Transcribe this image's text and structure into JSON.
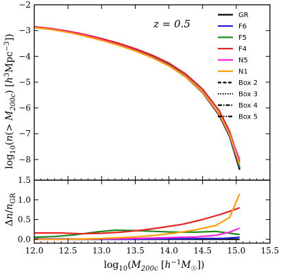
{
  "chart_data": [
    {
      "type": "line",
      "panel": "top",
      "annotation": "z = 0.5",
      "ylabel": "log10(n(>M200c) [h^3 Mpc^-3])",
      "xlim": [
        12.0,
        15.5
      ],
      "ylim": [
        -8.8,
        -2.0
      ],
      "x_ticks": [
        "12.0",
        "12.5",
        "13.0",
        "13.5",
        "14.0",
        "14.5",
        "15.0",
        "15.5"
      ],
      "y_ticks": [
        "−2",
        "−3",
        "−4",
        "−5",
        "−6",
        "−7",
        "−8"
      ],
      "legend_position": "top-right",
      "legend": [
        {
          "label": "GR",
          "color": "#000000",
          "dash": "solid"
        },
        {
          "label": "F6",
          "color": "#1f1fd1",
          "dash": "solid"
        },
        {
          "label": "F5",
          "color": "#1a8a1a",
          "dash": "solid"
        },
        {
          "label": "F4",
          "color": "#e62222",
          "dash": "solid"
        },
        {
          "label": "N5",
          "color": "#ff22dd",
          "dash": "solid"
        },
        {
          "label": "N1",
          "color": "#ffa000",
          "dash": "solid"
        },
        {
          "label": "Box 2",
          "color": "#000000",
          "dash": "dashed"
        },
        {
          "label": "Box 3",
          "color": "#000000",
          "dash": "dotted"
        },
        {
          "label": "Box 4",
          "color": "#000000",
          "dash": "dashdot"
        },
        {
          "label": "Box 5",
          "color": "#000000",
          "dash": "dashdotdot"
        }
      ],
      "series": [
        {
          "name": "GR",
          "color": "#000000",
          "x": [
            12.0,
            12.25,
            12.5,
            12.75,
            13.0,
            13.25,
            13.5,
            13.75,
            14.0,
            14.25,
            14.5,
            14.75,
            14.9,
            15.05
          ],
          "y": [
            -2.88,
            -2.95,
            -3.06,
            -3.2,
            -3.37,
            -3.56,
            -3.78,
            -4.04,
            -4.36,
            -4.8,
            -5.4,
            -6.3,
            -7.1,
            -8.4
          ]
        },
        {
          "name": "F6",
          "color": "#1f1fd1",
          "x": [
            12.0,
            12.25,
            12.5,
            12.75,
            13.0,
            13.25,
            13.5,
            13.75,
            14.0,
            14.25,
            14.5,
            14.75,
            14.9,
            15.05
          ],
          "y": [
            -2.88,
            -2.95,
            -3.06,
            -3.2,
            -3.37,
            -3.56,
            -3.78,
            -4.04,
            -4.36,
            -4.8,
            -5.4,
            -6.3,
            -7.1,
            -8.35
          ]
        },
        {
          "name": "F5",
          "color": "#1a8a1a",
          "x": [
            12.0,
            12.25,
            12.5,
            12.75,
            13.0,
            13.25,
            13.5,
            13.75,
            14.0,
            14.25,
            14.5,
            14.75,
            14.9,
            15.05
          ],
          "y": [
            -2.86,
            -2.93,
            -3.03,
            -3.17,
            -3.33,
            -3.52,
            -3.74,
            -4.0,
            -4.32,
            -4.76,
            -5.36,
            -6.25,
            -7.05,
            -8.3
          ]
        },
        {
          "name": "F4",
          "color": "#e62222",
          "x": [
            12.0,
            12.25,
            12.5,
            12.75,
            13.0,
            13.25,
            13.5,
            13.75,
            14.0,
            14.25,
            14.5,
            14.75,
            14.9,
            15.05
          ],
          "y": [
            -2.85,
            -2.92,
            -3.02,
            -3.15,
            -3.31,
            -3.49,
            -3.7,
            -3.95,
            -4.26,
            -4.68,
            -5.27,
            -6.12,
            -6.9,
            -8.1
          ]
        },
        {
          "name": "N5",
          "color": "#ff22dd",
          "x": [
            12.0,
            12.25,
            12.5,
            12.75,
            13.0,
            13.25,
            13.5,
            13.75,
            14.0,
            14.25,
            14.5,
            14.75,
            14.9,
            15.05
          ],
          "y": [
            -2.87,
            -2.94,
            -3.05,
            -3.19,
            -3.36,
            -3.55,
            -3.77,
            -4.03,
            -4.35,
            -4.78,
            -5.37,
            -6.25,
            -7.0,
            -8.0
          ]
        },
        {
          "name": "N1",
          "color": "#ffa000",
          "x": [
            12.0,
            12.25,
            12.5,
            12.75,
            13.0,
            13.25,
            13.5,
            13.75,
            14.0,
            14.25,
            14.5,
            14.75,
            14.9,
            15.05
          ],
          "y": [
            -2.88,
            -2.96,
            -3.07,
            -3.21,
            -3.38,
            -3.57,
            -3.79,
            -4.05,
            -4.37,
            -4.8,
            -5.38,
            -6.25,
            -7.02,
            -8.2
          ]
        }
      ]
    },
    {
      "type": "line",
      "panel": "bottom",
      "xlabel": "log10(M200c [h^-1 M☉])",
      "ylabel": "Δn / n_GR",
      "xlim": [
        12.0,
        15.5
      ],
      "ylim": [
        -0.1,
        1.5
      ],
      "x_ticks": [
        "12.0",
        "12.5",
        "13.0",
        "13.5",
        "14.0",
        "14.5",
        "15.0",
        "15.5"
      ],
      "y_ticks": [
        "0.0",
        "0.5",
        "1.0",
        "1.5"
      ],
      "series": [
        {
          "name": "GR",
          "color": "#000000",
          "x": [
            12.0,
            15.05
          ],
          "y": [
            0.0,
            0.0
          ]
        },
        {
          "name": "F6",
          "color": "#1f1fd1",
          "x": [
            12.0,
            12.5,
            13.0,
            13.5,
            14.0,
            14.5,
            14.8,
            15.05
          ],
          "y": [
            0.01,
            0.01,
            0.0,
            0.0,
            0.01,
            0.02,
            0.02,
            0.05
          ]
        },
        {
          "name": "F5",
          "color": "#1a8a1a",
          "x": [
            12.0,
            12.3,
            12.6,
            12.9,
            13.2,
            13.5,
            13.8,
            14.1,
            14.4,
            14.7,
            15.05
          ],
          "y": [
            0.05,
            0.07,
            0.11,
            0.18,
            0.23,
            0.22,
            0.2,
            0.18,
            0.18,
            0.2,
            0.12
          ]
        },
        {
          "name": "F4",
          "color": "#e62222",
          "x": [
            12.0,
            12.4,
            12.7,
            13.0,
            13.3,
            13.6,
            13.9,
            14.2,
            14.5,
            14.8,
            15.05
          ],
          "y": [
            0.16,
            0.16,
            0.14,
            0.15,
            0.18,
            0.23,
            0.3,
            0.38,
            0.5,
            0.65,
            0.8
          ]
        },
        {
          "name": "N5",
          "color": "#ff22dd",
          "x": [
            12.0,
            12.5,
            13.0,
            13.5,
            14.0,
            14.4,
            14.7,
            14.9,
            15.05
          ],
          "y": [
            0.0,
            0.0,
            0.01,
            0.02,
            0.04,
            0.06,
            0.1,
            0.18,
            0.28
          ]
        },
        {
          "name": "N1",
          "color": "#ffa000",
          "x": [
            12.0,
            12.5,
            13.0,
            13.5,
            13.8,
            14.1,
            14.4,
            14.7,
            14.9,
            15.05
          ],
          "y": [
            0.0,
            0.0,
            0.02,
            0.06,
            0.1,
            0.16,
            0.24,
            0.35,
            0.55,
            1.15
          ]
        }
      ]
    }
  ]
}
